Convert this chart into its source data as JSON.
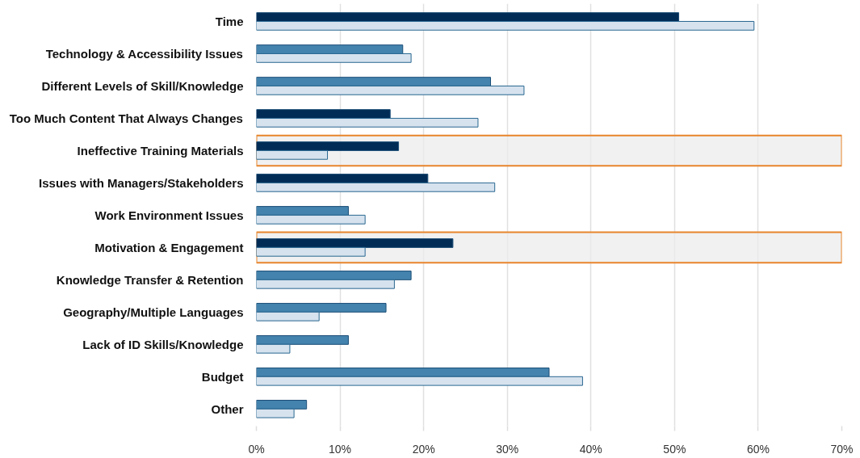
{
  "chart_data": {
    "type": "bar",
    "orientation": "horizontal",
    "categories": [
      "Time",
      "Technology & Accessibility Issues",
      "Different Levels of Skill/Knowledge",
      "Too Much Content That Always Changes",
      "Ineffective Training Materials",
      "Issues with Managers/Stakeholders",
      "Work Environment Issues",
      "Motivation & Engagement",
      "Knowledge Transfer & Retention",
      "Geography/Multiple Languages",
      "Lack of ID Skills/Knowledge",
      "Budget",
      "Other"
    ],
    "series": [
      {
        "colors": [
          "#012c55",
          "#4383ad",
          "#4383ad",
          "#012c55",
          "#012c55",
          "#012c55",
          "#4383ad",
          "#012c55",
          "#4383ad",
          "#4383ad",
          "#4383ad",
          "#4383ad",
          "#4383ad"
        ],
        "values": [
          50.5,
          17.5,
          28,
          16,
          17,
          20.5,
          11,
          23.5,
          18.5,
          15.5,
          11,
          35,
          6
        ]
      },
      {
        "color": "#d6e2ee",
        "values": [
          59.5,
          18.5,
          32,
          26.5,
          8.5,
          28.5,
          13,
          13,
          16.5,
          7.5,
          4,
          39,
          4.5
        ]
      }
    ],
    "xlim": [
      0,
      70
    ],
    "xticks": [
      {
        "value": 0,
        "label": "0%"
      },
      {
        "value": 10,
        "label": "10%"
      },
      {
        "value": 20,
        "label": "20%"
      },
      {
        "value": 30,
        "label": "30%"
      },
      {
        "value": 40,
        "label": "40%"
      },
      {
        "value": 50,
        "label": "50%"
      },
      {
        "value": 60,
        "label": "60%"
      },
      {
        "value": 70,
        "label": "70%"
      }
    ],
    "bands": [
      {
        "axis": "y",
        "from": "Ineffective Training Materials",
        "to": "Ineffective Training Materials",
        "color": "#ececec"
      },
      {
        "axis": "y",
        "from": "Motivation & Engagement",
        "to": "Motivation & Engagement",
        "color": "#ececec"
      }
    ],
    "grid": "x"
  }
}
